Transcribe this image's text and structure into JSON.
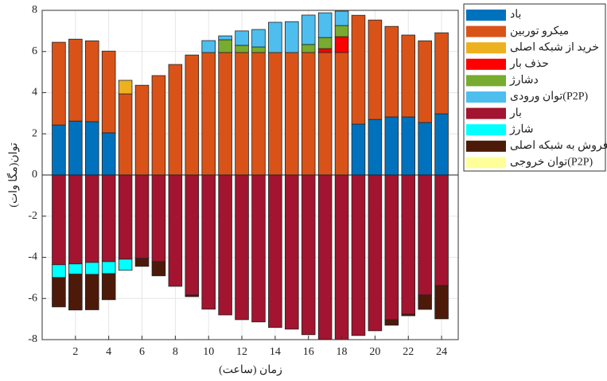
{
  "chart_data": {
    "type": "bar",
    "stacked": true,
    "xlabel": "زمان (ساعت)",
    "ylabel": "توان(مگا وات)",
    "x": [
      1,
      2,
      3,
      4,
      5,
      6,
      7,
      8,
      9,
      10,
      11,
      12,
      13,
      14,
      15,
      16,
      17,
      18,
      19,
      20,
      21,
      22,
      23,
      24
    ],
    "xlim": [
      0,
      25
    ],
    "xticks": [
      2,
      4,
      6,
      8,
      10,
      12,
      14,
      16,
      18,
      20,
      22,
      24
    ],
    "ylim": [
      -8,
      8
    ],
    "yticks": [
      -8,
      -6,
      -4,
      -2,
      0,
      2,
      4,
      6,
      8
    ],
    "grid": true,
    "legend": "outside-right",
    "series": [
      {
        "name": "باد",
        "color": "#0072bd",
        "values": [
          2.43,
          2.62,
          2.59,
          2.05,
          0,
          0,
          0,
          0,
          0,
          0,
          0,
          0,
          0,
          0,
          0,
          0,
          0,
          0,
          2.47,
          2.7,
          2.82,
          2.82,
          2.55,
          2.97
        ]
      },
      {
        "name": "میکرو توربین",
        "color": "#d95319",
        "values": [
          4.02,
          3.98,
          3.93,
          3.97,
          3.94,
          4.36,
          4.83,
          5.37,
          5.83,
          5.95,
          5.95,
          5.95,
          5.95,
          5.95,
          5.95,
          5.95,
          5.95,
          5.95,
          5.29,
          4.83,
          4.4,
          3.98,
          3.97,
          3.94
        ]
      },
      {
        "name": "خرید از شبکه اصلی",
        "color": "#edb120",
        "values": [
          0,
          0,
          0,
          0,
          0.66,
          0,
          0,
          0,
          0,
          0,
          0,
          0,
          0,
          0,
          0,
          0,
          0,
          0,
          0,
          0,
          0,
          0,
          0,
          0
        ]
      },
      {
        "name": "حذف بار",
        "color": "#ff0000",
        "values": [
          0,
          0,
          0,
          0,
          0,
          0,
          0,
          0,
          0,
          0,
          0,
          0,
          0,
          0,
          0,
          0,
          0.19,
          0.77,
          0,
          0,
          0,
          0,
          0,
          0
        ]
      },
      {
        "name": "دشارژ",
        "color": "#77ac30",
        "values": [
          0,
          0,
          0,
          0,
          0,
          0,
          0,
          0,
          0,
          0,
          0.62,
          0.35,
          0.27,
          0,
          0,
          0.39,
          0.54,
          0.54,
          0,
          0,
          0,
          0,
          0,
          0
        ]
      },
      {
        "name": "توان ورودی(P2P)",
        "color": "#4dbeee",
        "values": [
          0,
          0,
          0,
          0,
          0,
          0,
          0,
          0,
          0,
          0.58,
          0.19,
          0.7,
          0.85,
          1.47,
          1.5,
          1.43,
          1.2,
          0.7,
          0,
          0,
          0,
          0,
          0,
          0
        ]
      },
      {
        "name": "بار",
        "color": "#a2142f",
        "values": [
          -4.36,
          -4.32,
          -4.25,
          -4.21,
          -4.09,
          -4.05,
          -4.21,
          -5.41,
          -5.83,
          -6.52,
          -6.8,
          -7.03,
          -7.14,
          -7.41,
          -7.49,
          -7.76,
          -7.98,
          -8,
          -7.8,
          -7.57,
          -7.03,
          -6.76,
          -5.83,
          -5.37
        ]
      },
      {
        "name": "شارژ",
        "color": "#00ffff",
        "values": [
          -0.62,
          -0.5,
          -0.58,
          -0.58,
          -0.54,
          0,
          0,
          0,
          0,
          0,
          0,
          0,
          0,
          0,
          0,
          0,
          0,
          0,
          0,
          0,
          0,
          0,
          0,
          0
        ]
      },
      {
        "name": "فروش به شبکه اصلی",
        "color": "#4d1a0a",
        "values": [
          -1.43,
          -1.74,
          -1.72,
          -1.27,
          0,
          -0.39,
          -0.69,
          0,
          -0.08,
          0,
          0,
          0,
          0,
          0,
          0,
          0,
          0,
          0,
          0,
          0,
          -0.27,
          -0.08,
          -0.7,
          -1.62
        ]
      },
      {
        "name": "توان خروجی(P2P)",
        "color": "#ffff99",
        "values": [
          0,
          0,
          0,
          0,
          0,
          0,
          0,
          0,
          0,
          0,
          0,
          0,
          0,
          0,
          0,
          0,
          0,
          0,
          0,
          0,
          0,
          0,
          0,
          0
        ]
      }
    ]
  }
}
